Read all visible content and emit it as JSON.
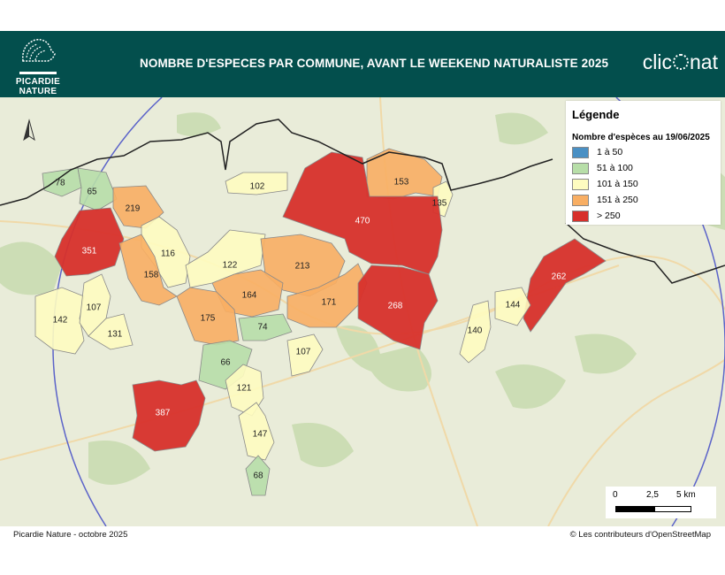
{
  "header": {
    "logo_text": [
      "PICARDIE",
      "NATURE"
    ],
    "title": "NOMBRE D'ESPECES PAR COMMUNE, AVANT LE WEEKEND NATURALISTE 2025",
    "brand": "clicnat",
    "brand_parts": [
      "clic",
      "nat"
    ]
  },
  "legend": {
    "title": "Légende",
    "subtitle": "Nombre d'espèces au 19/06/2025",
    "classes": [
      {
        "label": "1 à 50",
        "color": "#4a90c4"
      },
      {
        "label": "51 à 100",
        "color": "#b7dea8"
      },
      {
        "label": "101 à 150",
        "color": "#fefcc0"
      },
      {
        "label": "151 à 250",
        "color": "#f8ae63"
      },
      {
        "label": "> 250",
        "color": "#d7302b"
      }
    ]
  },
  "communes": [
    {
      "value": "78",
      "class": 1
    },
    {
      "value": "65",
      "class": 1
    },
    {
      "value": "219",
      "class": 3
    },
    {
      "value": "351",
      "class": 4
    },
    {
      "value": "102",
      "class": 2
    },
    {
      "value": "153",
      "class": 3
    },
    {
      "value": "135",
      "class": 2
    },
    {
      "value": "470",
      "class": 4
    },
    {
      "value": "116",
      "class": 2
    },
    {
      "value": "122",
      "class": 2
    },
    {
      "value": "213",
      "class": 3
    },
    {
      "value": "158",
      "class": 3
    },
    {
      "value": "164",
      "class": 3
    },
    {
      "value": "171",
      "class": 3
    },
    {
      "value": "268",
      "class": 4
    },
    {
      "value": "262",
      "class": 4
    },
    {
      "value": "144",
      "class": 2
    },
    {
      "value": "142",
      "class": 2
    },
    {
      "value": "107",
      "class": 2
    },
    {
      "value": "131",
      "class": 2
    },
    {
      "value": "175",
      "class": 3
    },
    {
      "value": "74",
      "class": 1
    },
    {
      "value": "140",
      "class": 2
    },
    {
      "value": "107",
      "class": 2
    },
    {
      "value": "66",
      "class": 1
    },
    {
      "value": "121",
      "class": 2
    },
    {
      "value": "387",
      "class": 4
    },
    {
      "value": "147",
      "class": 2
    },
    {
      "value": "68",
      "class": 1
    }
  ],
  "scale": {
    "ticks": [
      "0",
      "2,5",
      "5 km"
    ]
  },
  "north_arrow": "north-arrow",
  "footer": {
    "left": "Picardie Nature  -  octobre 2025",
    "right": "© Les contributeurs d'OpenStreetMap"
  }
}
